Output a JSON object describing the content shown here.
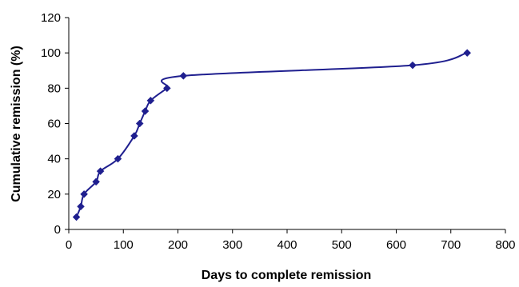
{
  "chart_data": {
    "type": "line",
    "title": "",
    "xlabel": "Days to complete remission",
    "ylabel": "Cumulative remission (%)",
    "xlim": [
      0,
      800
    ],
    "ylim": [
      0,
      120
    ],
    "x_ticks": [
      0,
      100,
      200,
      300,
      400,
      500,
      600,
      700,
      800
    ],
    "y_ticks": [
      0,
      20,
      40,
      60,
      80,
      100,
      120
    ],
    "grid": false,
    "legend": "none",
    "series": [
      {
        "color": "#1f1f8f",
        "marker": "diamond",
        "smooth": true,
        "points": [
          {
            "x": 14,
            "y": 7
          },
          {
            "x": 22,
            "y": 13
          },
          {
            "x": 28,
            "y": 20
          },
          {
            "x": 50,
            "y": 27
          },
          {
            "x": 58,
            "y": 33
          },
          {
            "x": 90,
            "y": 40
          },
          {
            "x": 120,
            "y": 53
          },
          {
            "x": 130,
            "y": 60
          },
          {
            "x": 140,
            "y": 67
          },
          {
            "x": 150,
            "y": 73
          },
          {
            "x": 180,
            "y": 80
          },
          {
            "x": 210,
            "y": 87
          },
          {
            "x": 630,
            "y": 93
          },
          {
            "x": 730,
            "y": 100
          }
        ]
      }
    ]
  }
}
